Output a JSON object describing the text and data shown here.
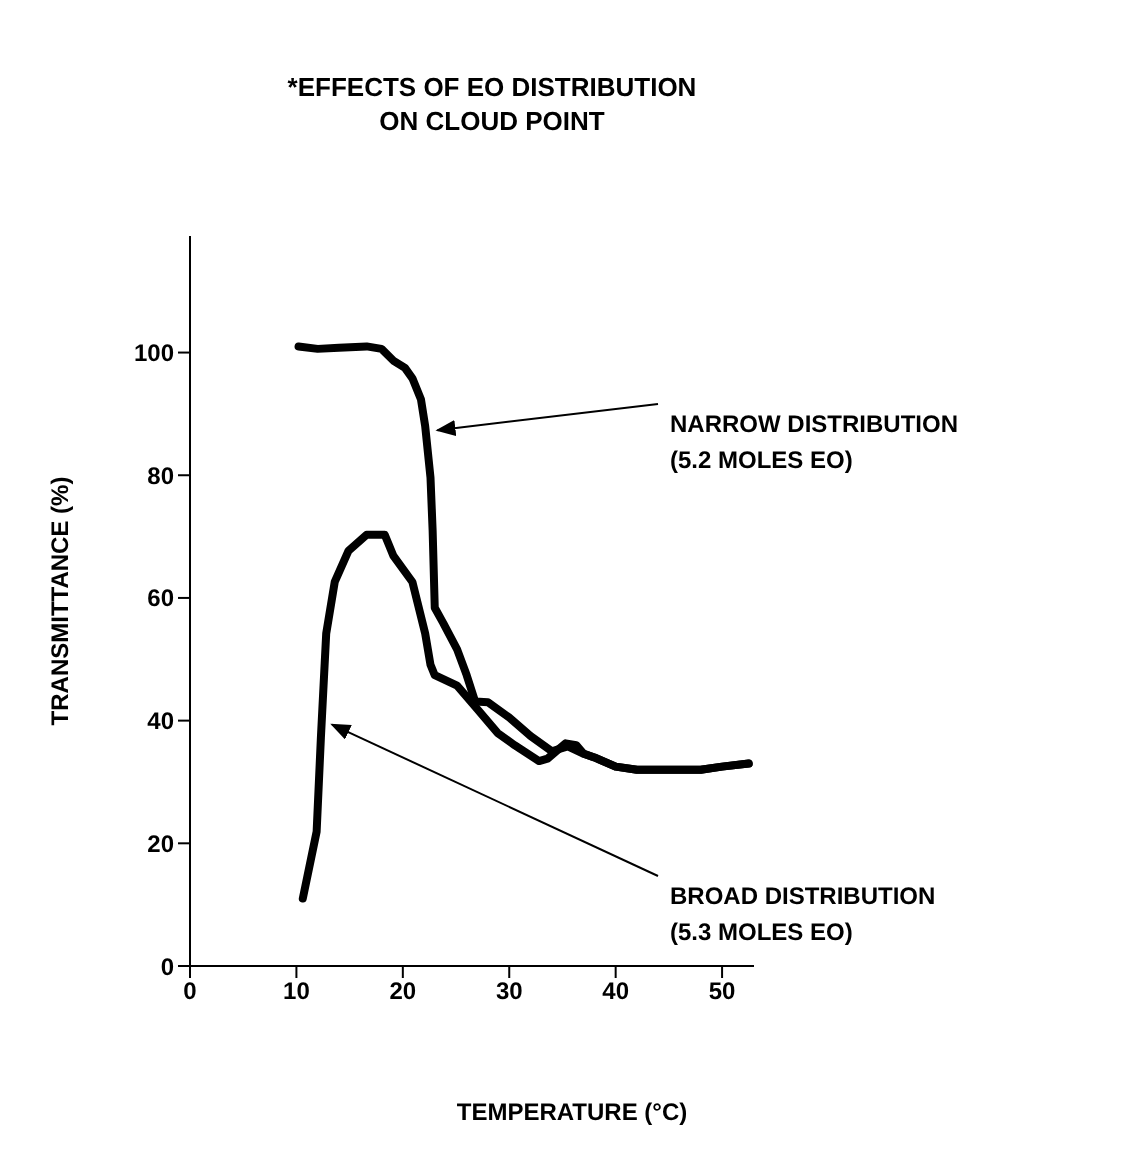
{
  "chart_data": {
    "type": "line",
    "title": "*EFFECTS OF EO DISTRIBUTION\nON CLOUD POINT",
    "xlabel": "TEMPERATURE (°C)",
    "ylabel": "TRANSMITTANCE (%)",
    "xlim": [
      0,
      53
    ],
    "xticks": [
      0,
      10,
      20,
      30,
      40,
      50
    ],
    "ylim": [
      0,
      119
    ],
    "yticks": [
      0,
      20,
      40,
      60,
      80,
      100
    ],
    "annotations": [
      {
        "text": "NARROW DISTRIBUTION\n(5.2 MOLES EO)",
        "x": 22.5,
        "y": 88
      },
      {
        "text": "BROAD DISTRIBUTION\n(5.3 MOLES EO)",
        "x": 12.6,
        "y": 40
      }
    ],
    "series": [
      {
        "color": "#000000",
        "x": [
          10.2,
          12,
          14,
          16.6,
          18,
          19.1,
          20.2,
          20.9,
          21.7,
          22.1,
          22.6,
          22.8,
          23,
          23.8,
          25.1,
          26,
          26.8,
          28,
          30,
          32,
          34,
          35.5,
          37,
          38,
          40,
          42,
          45,
          48,
          50,
          52.5
        ],
        "values": [
          101,
          100.6,
          100.8,
          101,
          100.6,
          98.7,
          97.5,
          95.8,
          92.4,
          88,
          79.6,
          71,
          58.4,
          55.9,
          51.6,
          47.4,
          43.1,
          43,
          40.5,
          37.5,
          35,
          35.8,
          34.6,
          34,
          32.5,
          32,
          32,
          32,
          32.5,
          33
        ]
      },
      {
        "color": "#000000",
        "x": [
          10.6,
          11.9,
          12.3,
          12.8,
          13.6,
          14.9,
          16.6,
          18.3,
          19.1,
          20.9,
          22.1,
          22.6,
          23,
          25.1,
          26.8,
          28.9,
          30.5,
          32.8,
          33.6,
          35.3,
          36.3,
          37,
          38,
          40,
          42,
          45,
          48,
          50,
          52.5
        ],
        "values": [
          11,
          21.9,
          37.2,
          54.2,
          62.6,
          67.7,
          70.3,
          70.3,
          66.9,
          62.6,
          54.2,
          49.1,
          47.4,
          45.7,
          42.3,
          38,
          36,
          33.4,
          33.8,
          36.3,
          36,
          34.6,
          34,
          32.5,
          32,
          32,
          32,
          32.5,
          33
        ]
      }
    ]
  }
}
